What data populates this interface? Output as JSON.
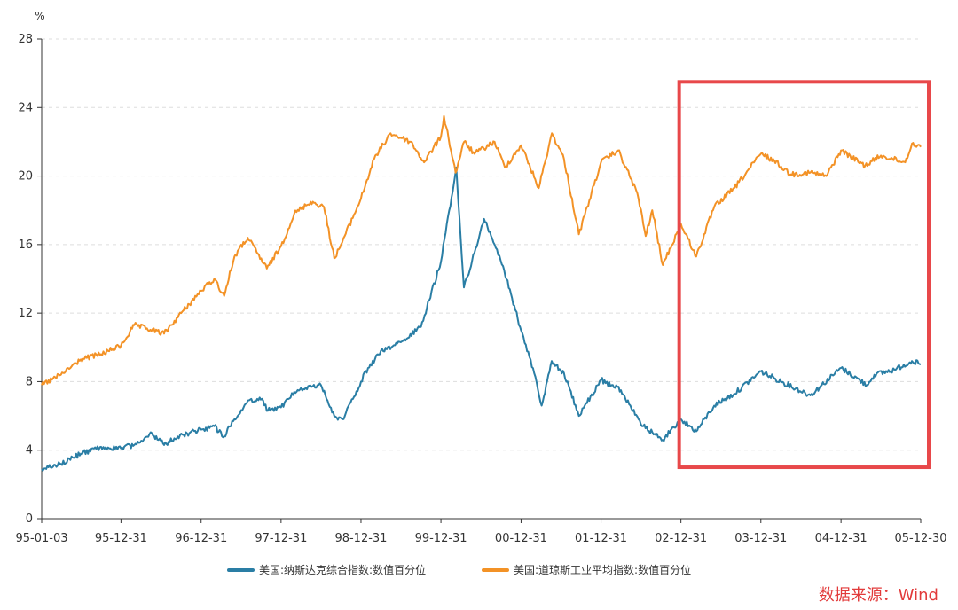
{
  "chart_data": {
    "type": "line",
    "title": "",
    "xlabel": "",
    "ylabel": "",
    "yunit": "%",
    "ylim": [
      0,
      28
    ],
    "yticks": [
      0,
      4,
      8,
      12,
      16,
      20,
      24,
      28
    ],
    "x_ticks": [
      "95-01-03",
      "95-12-31",
      "96-12-31",
      "97-12-31",
      "98-12-31",
      "99-12-31",
      "00-12-31",
      "01-12-31",
      "02-12-31",
      "03-12-31",
      "04-12-31",
      "05-12-30"
    ],
    "x_range": [
      "1995-01-03",
      "2005-12-30"
    ],
    "grid": "horizontal dashed",
    "legend_position": "bottom-center",
    "highlight_box": {
      "from": "2002-12-31",
      "to": "2005-12-30",
      "ymin": 3,
      "ymax": 25.5,
      "color": "#e8484a"
    },
    "series": [
      {
        "name": "美国:纳斯达克综合指数:数值百分位",
        "color": "#2a7ea5",
        "points": [
          [
            "1995-01-03",
            2.9
          ],
          [
            "1995-04-01",
            3.2
          ],
          [
            "1995-07-01",
            3.8
          ],
          [
            "1995-10-01",
            4.2
          ],
          [
            "1995-12-31",
            4.1
          ],
          [
            "1996-03-01",
            4.3
          ],
          [
            "1996-05-20",
            5.0
          ],
          [
            "1996-07-15",
            4.3
          ],
          [
            "1996-09-15",
            4.8
          ],
          [
            "1996-12-31",
            5.2
          ],
          [
            "1997-03-01",
            5.4
          ],
          [
            "1997-04-15",
            4.8
          ],
          [
            "1997-06-01",
            5.8
          ],
          [
            "1997-08-01",
            6.9
          ],
          [
            "1997-10-05",
            7.0
          ],
          [
            "1997-11-01",
            6.3
          ],
          [
            "1997-12-31",
            6.5
          ],
          [
            "1998-03-01",
            7.4
          ],
          [
            "1998-07-01",
            7.8
          ],
          [
            "1998-08-31",
            6.0
          ],
          [
            "1998-10-08",
            5.8
          ],
          [
            "1998-12-31",
            8.0
          ],
          [
            "1999-02-01",
            8.8
          ],
          [
            "1999-04-01",
            9.8
          ],
          [
            "1999-07-01",
            10.3
          ],
          [
            "1999-10-01",
            11.2
          ],
          [
            "1999-12-31",
            15.0
          ],
          [
            "2000-03-10",
            20.5
          ],
          [
            "2000-04-14",
            13.5
          ],
          [
            "2000-06-01",
            15.5
          ],
          [
            "2000-07-15",
            17.5
          ],
          [
            "2000-09-01",
            16.0
          ],
          [
            "2000-10-15",
            14.5
          ],
          [
            "2000-12-31",
            11.0
          ],
          [
            "2001-03-01",
            8.5
          ],
          [
            "2001-04-04",
            6.6
          ],
          [
            "2001-05-20",
            9.2
          ],
          [
            "2001-07-15",
            8.5
          ],
          [
            "2001-09-21",
            6.0
          ],
          [
            "2001-12-31",
            8.1
          ],
          [
            "2002-04-01",
            7.5
          ],
          [
            "2002-07-01",
            5.5
          ],
          [
            "2002-10-09",
            4.6
          ],
          [
            "2002-12-31",
            5.8
          ],
          [
            "2003-03-11",
            5.1
          ],
          [
            "2003-06-01",
            6.6
          ],
          [
            "2003-09-01",
            7.3
          ],
          [
            "2003-12-31",
            8.6
          ],
          [
            "2004-03-01",
            8.2
          ],
          [
            "2004-08-13",
            7.2
          ],
          [
            "2004-12-31",
            8.8
          ],
          [
            "2005-04-28",
            7.8
          ],
          [
            "2005-06-01",
            8.4
          ],
          [
            "2005-09-01",
            8.7
          ],
          [
            "2005-11-20",
            9.2
          ],
          [
            "2005-12-30",
            9.0
          ]
        ]
      },
      {
        "name": "美国:道琼斯工业平均指数:数值百分位",
        "color": "#f39226",
        "points": [
          [
            "1995-01-03",
            7.8
          ],
          [
            "1995-04-01",
            8.4
          ],
          [
            "1995-07-01",
            9.3
          ],
          [
            "1995-10-01",
            9.6
          ],
          [
            "1995-12-31",
            10.1
          ],
          [
            "1996-03-01",
            11.3
          ],
          [
            "1996-07-15",
            10.8
          ],
          [
            "1996-10-01",
            12.0
          ],
          [
            "1996-12-31",
            13.3
          ],
          [
            "1997-03-01",
            14.0
          ],
          [
            "1997-04-15",
            13.0
          ],
          [
            "1997-06-01",
            15.3
          ],
          [
            "1997-08-01",
            16.4
          ],
          [
            "1997-10-27",
            14.6
          ],
          [
            "1997-12-31",
            15.9
          ],
          [
            "1998-03-01",
            17.8
          ],
          [
            "1998-05-15",
            18.5
          ],
          [
            "1998-07-15",
            18.2
          ],
          [
            "1998-08-31",
            15.2
          ],
          [
            "1998-10-01",
            16.0
          ],
          [
            "1998-12-31",
            18.7
          ],
          [
            "1999-03-01",
            21.0
          ],
          [
            "1999-05-15",
            22.5
          ],
          [
            "1999-08-15",
            22.0
          ],
          [
            "1999-10-15",
            20.8
          ],
          [
            "1999-12-31",
            22.3
          ],
          [
            "2000-01-14",
            23.5
          ],
          [
            "2000-03-07",
            20.2
          ],
          [
            "2000-04-15",
            22.0
          ],
          [
            "2000-06-01",
            21.3
          ],
          [
            "2000-09-01",
            22.0
          ],
          [
            "2000-10-18",
            20.5
          ],
          [
            "2000-12-31",
            21.8
          ],
          [
            "2001-03-22",
            19.3
          ],
          [
            "2001-05-21",
            22.5
          ],
          [
            "2001-07-15",
            21.0
          ],
          [
            "2001-09-21",
            16.6
          ],
          [
            "2001-12-31",
            20.8
          ],
          [
            "2002-03-19",
            21.5
          ],
          [
            "2002-06-15",
            19.0
          ],
          [
            "2002-07-23",
            16.5
          ],
          [
            "2002-08-22",
            18.0
          ],
          [
            "2002-10-09",
            14.8
          ],
          [
            "2002-12-31",
            17.2
          ],
          [
            "2003-03-11",
            15.3
          ],
          [
            "2003-06-01",
            18.2
          ],
          [
            "2003-09-01",
            19.3
          ],
          [
            "2003-12-31",
            21.3
          ],
          [
            "2004-03-01",
            20.9
          ],
          [
            "2004-05-15",
            20.1
          ],
          [
            "2004-08-13",
            20.2
          ],
          [
            "2004-10-25",
            20.0
          ],
          [
            "2004-12-31",
            21.5
          ],
          [
            "2005-04-20",
            20.6
          ],
          [
            "2005-07-01",
            21.2
          ],
          [
            "2005-10-20",
            20.8
          ],
          [
            "2005-11-20",
            21.9
          ],
          [
            "2005-12-30",
            21.7
          ]
        ]
      }
    ],
    "source": "数据来源：Wind"
  }
}
